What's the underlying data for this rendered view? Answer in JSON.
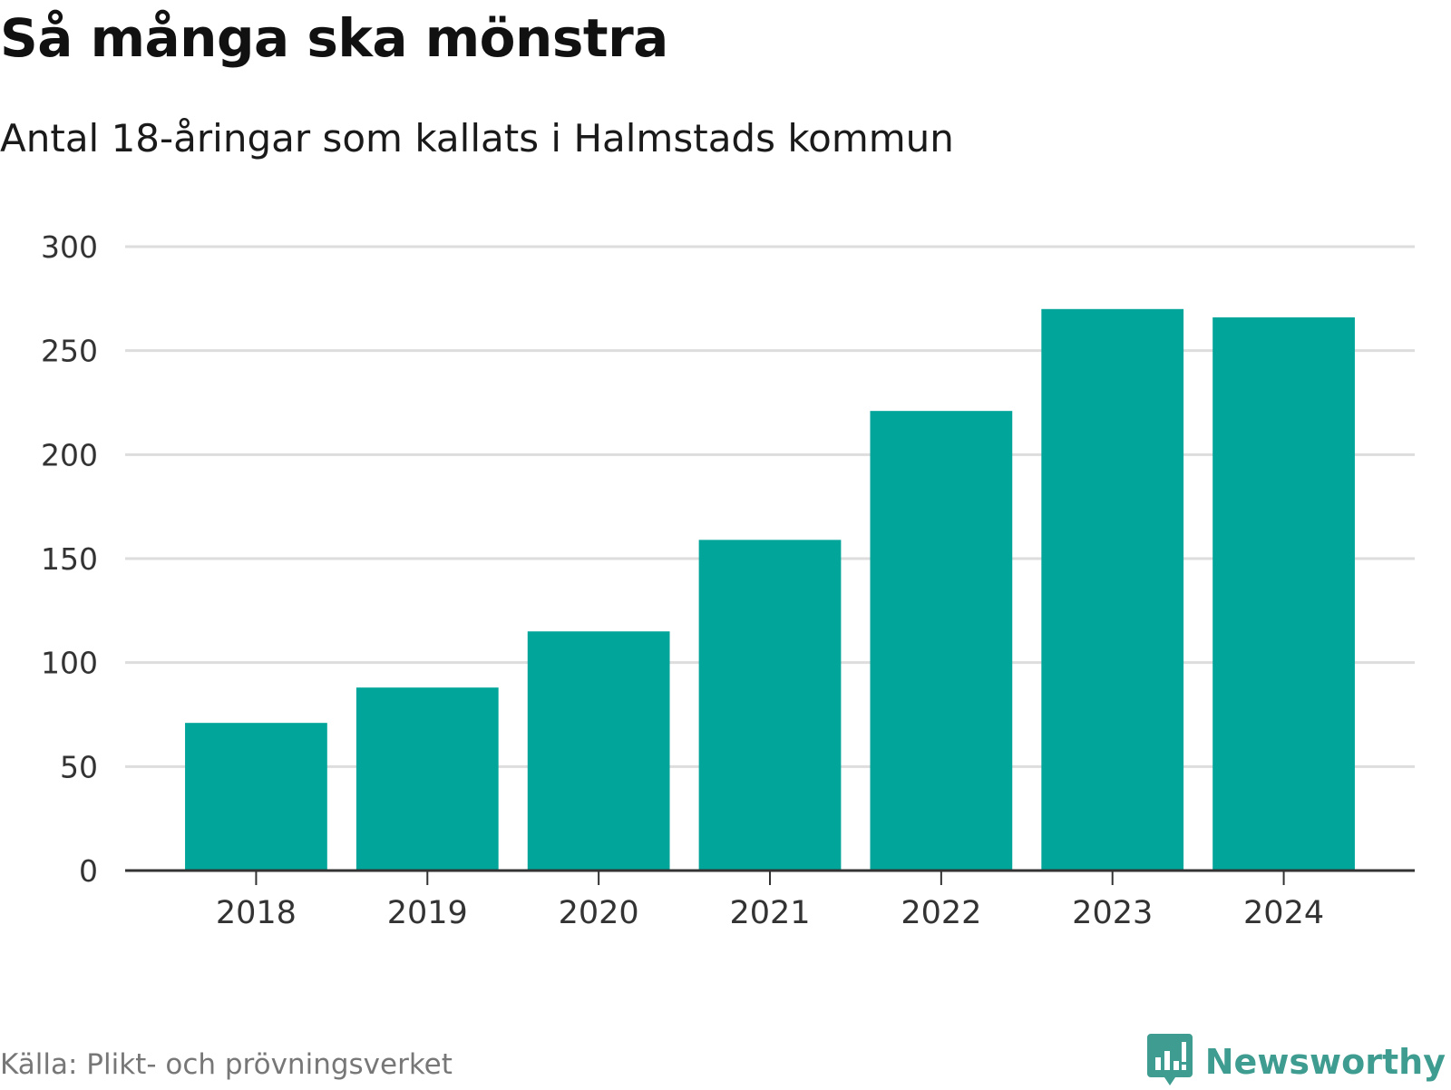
{
  "header": {
    "title": "Så många ska mönstra",
    "subtitle": "Antal 18-åringar som kallats i Halmstads kommun"
  },
  "footer": {
    "source": "Källa: Plikt- och prövningsverket",
    "logo_text": "Newsworthy",
    "logo_icon": "newsworthy-chart-bubble-icon"
  },
  "colors": {
    "bar": "#02A59A",
    "grid": "#dddddd",
    "axis": "#333333",
    "logo": "#3E9C90"
  },
  "chart_data": {
    "type": "bar",
    "title": "Så många ska mönstra",
    "subtitle": "Antal 18-åringar som kallats i Halmstads kommun",
    "categories": [
      "2018",
      "2019",
      "2020",
      "2021",
      "2022",
      "2023",
      "2024"
    ],
    "values": [
      71,
      88,
      115,
      159,
      221,
      270,
      266
    ],
    "xlabel": "",
    "ylabel": "",
    "ylim": [
      0,
      300
    ],
    "yticks": [
      0,
      50,
      100,
      150,
      200,
      250,
      300
    ],
    "grid": true,
    "legend": "none"
  }
}
